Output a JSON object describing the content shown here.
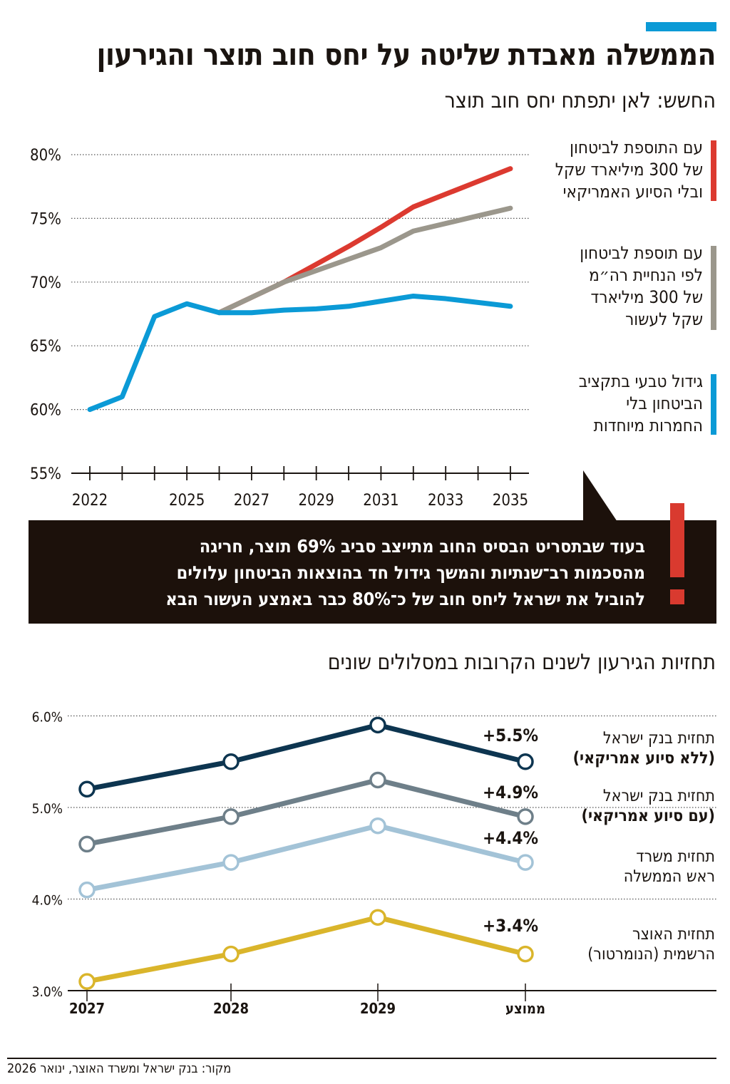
{
  "header": {
    "title": "הממשלה מאבדת שליטה על יחס חוב תוצר והגירעון",
    "accent_color": "#0b9ad6"
  },
  "chart_data": [
    {
      "type": "line",
      "title": "החשש: לאן יתפתח יחס חוב תוצר",
      "x": [
        2022,
        2023,
        2024,
        2025,
        2026,
        2027,
        2028,
        2029,
        2030,
        2031,
        2032,
        2033,
        2034,
        2035
      ],
      "x_tick_labels": [
        "2022",
        "2025",
        "2027",
        "2029",
        "2031",
        "2033",
        "2035"
      ],
      "x_tick_years": [
        2022,
        2025,
        2027,
        2029,
        2031,
        2033,
        2035
      ],
      "y_tick_labels": [
        "80%",
        "75%",
        "70%",
        "65%",
        "60%",
        "55%"
      ],
      "y_ticks": [
        80,
        75,
        70,
        65,
        60,
        55
      ],
      "ylim": [
        55,
        80
      ],
      "grid": true,
      "legend_position": "right",
      "series": [
        {
          "name": "עם התוספת לביטחון של 300 מיליארד שקל ובלי הסיוע האמריקאי",
          "legend_lines": [
            "עם התוספת לביטחון",
            "של 300 מיליארד שקל",
            "ובלי הסיוע האמריקאי"
          ],
          "color": "#dc3a30",
          "x": [
            2026,
            2027,
            2028,
            2029,
            2030,
            2031,
            2032,
            2033,
            2034,
            2035
          ],
          "values": [
            67.6,
            68.8,
            70.0,
            71.4,
            72.8,
            74.3,
            75.9,
            76.9,
            77.9,
            78.9
          ]
        },
        {
          "name": "עם תוספת לביטחון לפי הנחיית רה\"מ של 300 מיליארד שקל לעשור",
          "legend_lines": [
            "עם תוספת לביטחון",
            "לפי הנחיית רה״מ",
            "של 300 מיליארד",
            "שקל לעשור"
          ],
          "color": "#9b978c",
          "x": [
            2026,
            2027,
            2028,
            2029,
            2030,
            2031,
            2032,
            2033,
            2034,
            2035
          ],
          "values": [
            67.6,
            68.8,
            70.0,
            70.9,
            71.8,
            72.7,
            74.0,
            74.6,
            75.2,
            75.8
          ]
        },
        {
          "name": "גידול טבעי בתקציב הביטחון בלי החמרות מיוחדות",
          "legend_lines": [
            "גידול טבעי בתקציב",
            "הביטחון בלי",
            "החמרות מיוחדות"
          ],
          "color": "#0b9ad6",
          "x": [
            2022,
            2023,
            2024,
            2025,
            2026,
            2027,
            2028,
            2029,
            2030,
            2031,
            2032,
            2033,
            2034,
            2035
          ],
          "values": [
            60.0,
            61.0,
            67.3,
            68.3,
            67.6,
            67.6,
            67.8,
            67.9,
            68.1,
            68.5,
            68.9,
            68.7,
            68.4,
            68.1
          ]
        }
      ]
    },
    {
      "type": "line",
      "title": "תחזיות הגירעון לשנים הקרובות במסלולים שונים",
      "categories": [
        "2027",
        "2028",
        "2029",
        "ממוצע"
      ],
      "y_tick_labels": [
        "6.0%",
        "5.0%",
        "4.0%",
        "3.0%"
      ],
      "y_ticks": [
        6,
        5,
        4,
        3
      ],
      "ylim": [
        3,
        6
      ],
      "grid": true,
      "legend_position": "right",
      "series": [
        {
          "name": "תחזית בנק ישראל (ללא סיוע אמריקאי)",
          "legend_lines": [
            "תחזית בנק ישראל",
            "(ללא סיוע אמריקאי)"
          ],
          "value_label": "+5.5%",
          "color": "#0d3550",
          "values": [
            5.2,
            5.5,
            5.9,
            5.5
          ]
        },
        {
          "name": "תחזית בנק ישראל (עם סיוע אמריקאי)",
          "legend_lines": [
            "תחזית בנק ישראל",
            "(עם סיוע אמריקאי)"
          ],
          "value_label": "+4.9%",
          "color": "#6e7f89",
          "values": [
            4.6,
            4.9,
            5.3,
            4.9
          ]
        },
        {
          "name": "תחזית משרד ראש הממשלה",
          "legend_lines": [
            "תחזית משרד",
            "ראש הממשלה"
          ],
          "value_label": "+4.4%",
          "color": "#a3c3d7",
          "values": [
            4.1,
            4.4,
            4.8,
            4.4
          ]
        },
        {
          "name": "תחזית האוצר הרשמית (הנומרטור)",
          "legend_lines": [
            "תחזית האוצר",
            "הרשמית (הנומרטור)"
          ],
          "value_label": "+3.4%",
          "color": "#dab52b",
          "values": [
            3.1,
            3.4,
            3.8,
            3.4
          ]
        }
      ]
    }
  ],
  "callout": {
    "lines": [
      "בעוד שבתסריט הבסיס החוב מתייצב סביב 69% תוצר, חריגה",
      "מהסכמות רב־שנתיות והמשך גידול חד בהוצאות הביטחון עלולים",
      "להוביל את ישראל ליחס חוב של כ־80% כבר באמצע העשור הבא"
    ],
    "icon": "exclamation-icon",
    "icon_color": "#d93a2f"
  },
  "footer": {
    "source": "מקור: בנק ישראל ומשרד האוצר, ינואר 2026"
  }
}
